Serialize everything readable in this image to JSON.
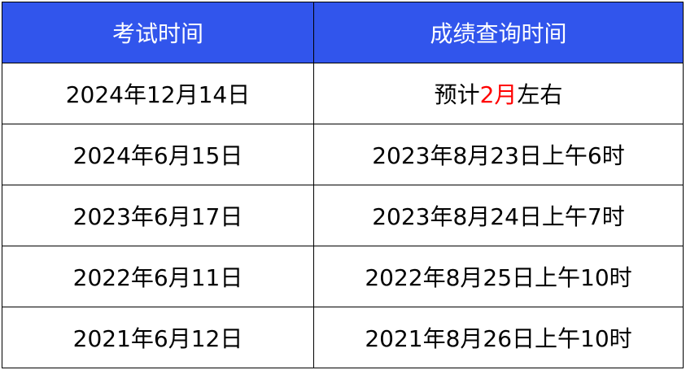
{
  "header": {
    "exam_time": "考试时间",
    "score_query_time": "成绩查询时间",
    "bg_color": "#3155EC"
  },
  "rows": [
    {
      "exam": "2024年12月14日",
      "query_prefix": "预计",
      "query_highlight": "2月",
      "query_suffix": "左右",
      "highlight_color": "#FF0000"
    },
    {
      "exam": "2024年6月15日",
      "query": "2023年8月23日上午6时"
    },
    {
      "exam": "2023年6月17日",
      "query": "2023年8月24日上午7时"
    },
    {
      "exam": "2022年6月11日",
      "query": "2022年8月25日上午10时"
    },
    {
      "exam": "2021年6月12日",
      "query": "2021年8月26日上午10时"
    }
  ]
}
